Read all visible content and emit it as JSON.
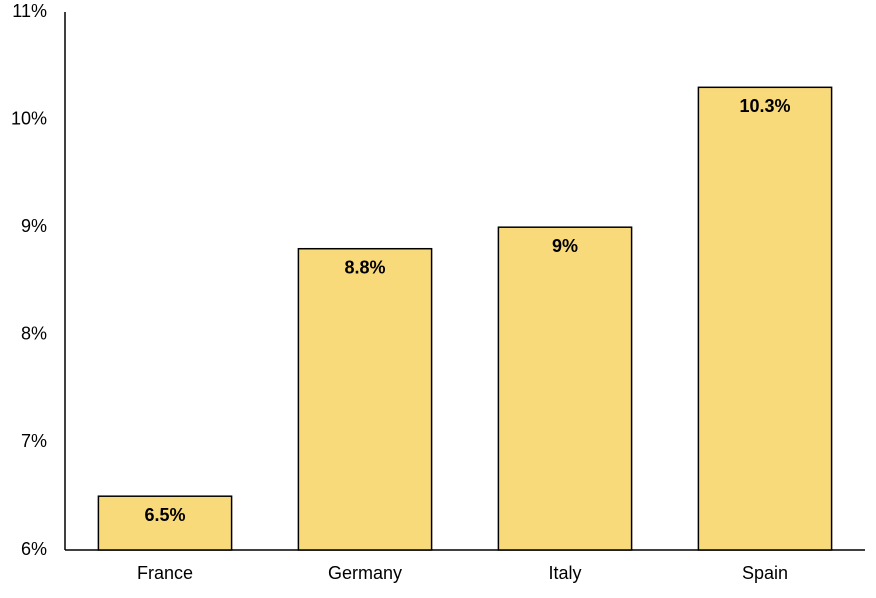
{
  "chart_data": {
    "type": "bar",
    "categories": [
      "France",
      "Germany",
      "Italy",
      "Spain"
    ],
    "values": [
      6.5,
      8.8,
      9,
      10.3
    ],
    "value_labels": [
      "6.5%",
      "8.8%",
      "9%",
      "10.3%"
    ],
    "color": "#f9da7b",
    "ylim": [
      6,
      11
    ],
    "yticks": [
      {
        "value": 6,
        "label": "6%"
      },
      {
        "value": 7,
        "label": "7%"
      },
      {
        "value": 8,
        "label": "8%"
      },
      {
        "value": 9,
        "label": "9%"
      },
      {
        "value": 10,
        "label": "10%"
      },
      {
        "value": 11,
        "label": "11%"
      }
    ],
    "grid": false
  }
}
